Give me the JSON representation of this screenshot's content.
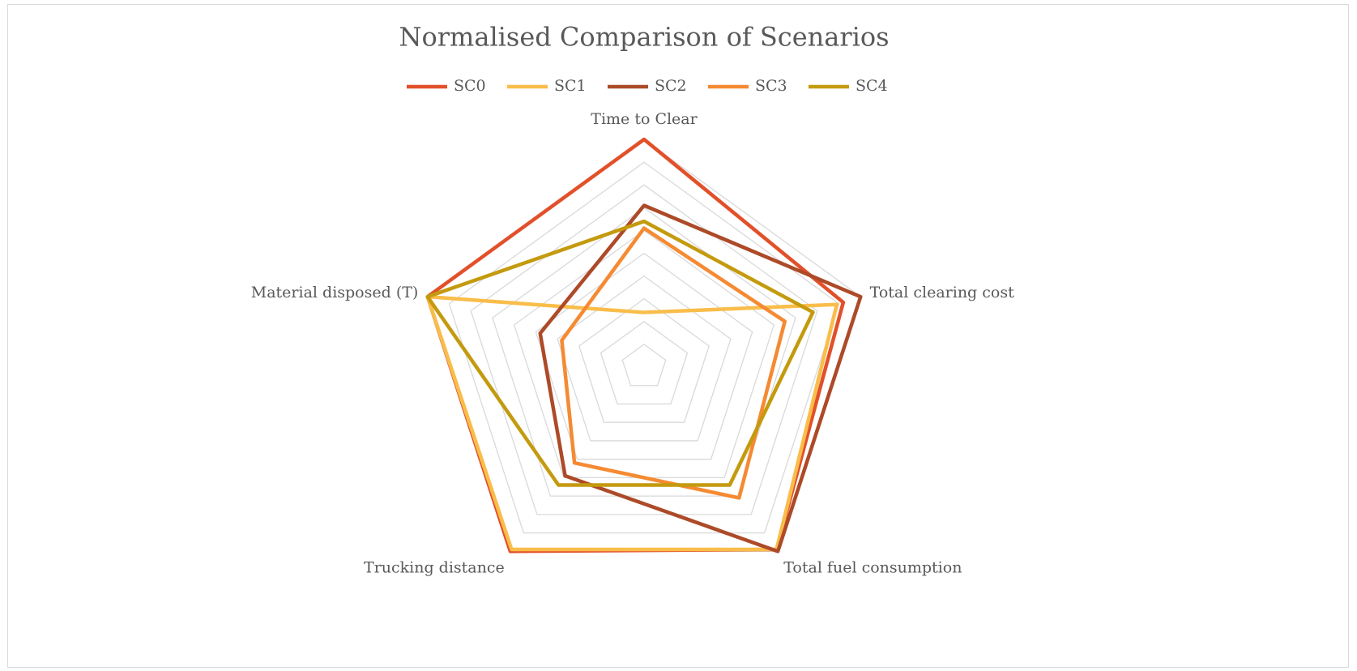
{
  "chart_data": {
    "type": "radar",
    "title": "Normalised Comparison of Scenarios",
    "categories": [
      "Time to Clear",
      "Total clearing cost",
      "Total fuel consumption",
      "Trucking distance",
      "Material disposed (T)"
    ],
    "series": [
      {
        "name": "SC0",
        "color": "#e2502a",
        "values": [
          1,
          0.92,
          0.99,
          1,
          1
        ]
      },
      {
        "name": "SC1",
        "color": "#f9bd4a",
        "values": [
          0.24,
          0.89,
          0.99,
          0.99,
          1
        ]
      },
      {
        "name": "SC2",
        "color": "#ad4a28",
        "values": [
          0.71,
          1,
          1,
          0.59,
          0.48
        ]
      },
      {
        "name": "SC3",
        "color": "#f58a32",
        "values": [
          0.61,
          0.65,
          0.71,
          0.52,
          0.38
        ]
      },
      {
        "name": "SC4",
        "color": "#c49a0e",
        "values": [
          0.64,
          0.78,
          0.64,
          0.64,
          1
        ]
      }
    ],
    "ylim": [
      0,
      1
    ],
    "yticks": [
      0,
      0.1,
      0.2,
      0.3,
      0.4,
      0.5,
      0.6,
      0.7,
      0.8,
      0.9,
      1
    ],
    "grid": true,
    "legend": "top"
  }
}
